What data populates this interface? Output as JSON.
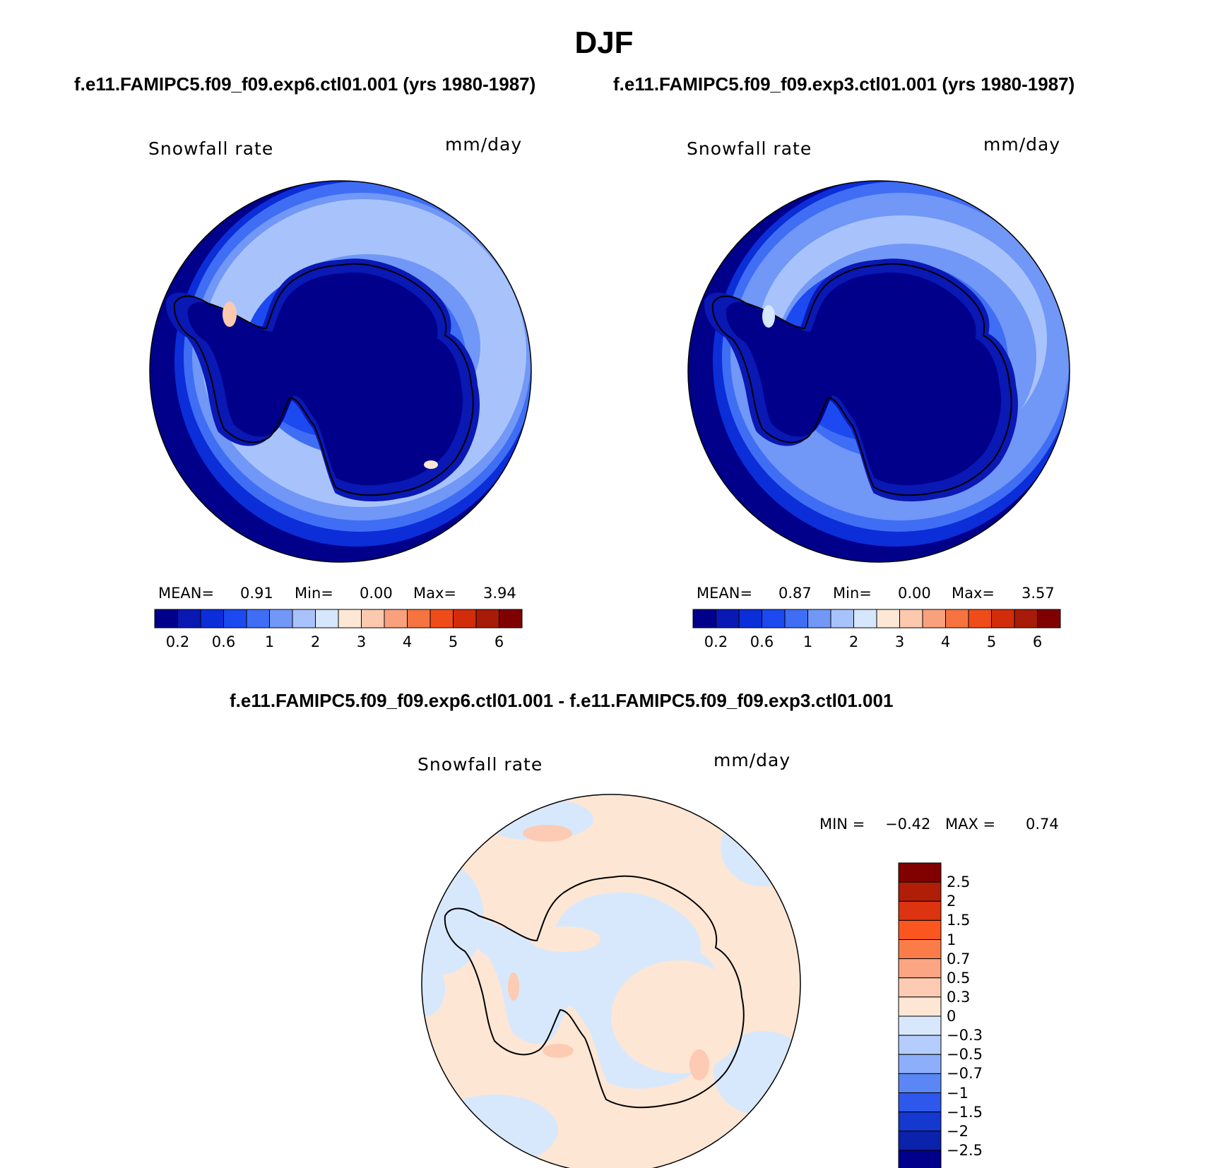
{
  "title": "DJF",
  "panels": [
    {
      "subtitle": "f.e11.FAMIPC5.f09_f09.exp6.ctl01.001 (yrs 1980-1987)",
      "variable": "Snowfall rate",
      "units": "mm/day",
      "stats": {
        "mean_label": "MEAN=",
        "mean": "0.91",
        "min_label": "Min=",
        "min": "0.00",
        "max_label": "Max=",
        "max": "3.94"
      }
    },
    {
      "subtitle": "f.e11.FAMIPC5.f09_f09.exp3.ctl01.001 (yrs 1980-1987)",
      "variable": "Snowfall rate",
      "units": "mm/day",
      "stats": {
        "mean_label": "MEAN=",
        "mean": "0.87",
        "min_label": "Min=",
        "min": "0.00",
        "max_label": "Max=",
        "max": "3.57"
      }
    }
  ],
  "difference": {
    "subtitle": "f.e11.FAMIPC5.f09_f09.exp6.ctl01.001 - f.e11.FAMIPC5.f09_f09.exp3.ctl01.001",
    "variable": "Snowfall rate",
    "units": "mm/day",
    "min_label": "MIN =",
    "min": "−0.42",
    "max_label": "MAX =",
    "max": "0.74"
  },
  "colorbar_main": {
    "colors": [
      "#00008b",
      "#0a18b4",
      "#0b2ed8",
      "#1d49f0",
      "#3f6ef5",
      "#7197f7",
      "#a8c3fb",
      "#d5e6fd",
      "#fde8d6",
      "#fcc9ae",
      "#f9a07d",
      "#f6743f",
      "#f04c1a",
      "#d22d0b",
      "#a81b08",
      "#800000"
    ],
    "tick_labels": [
      "0.2",
      "0.6",
      "1",
      "2",
      "3",
      "4",
      "5",
      "6"
    ]
  },
  "colorbar_diff": {
    "colors_top_to_bottom": [
      "#800000",
      "#b01e08",
      "#dc3310",
      "#fb5620",
      "#fb7c48",
      "#fca583",
      "#fdcbb3",
      "#fee6d4",
      "#d7e8fd",
      "#b4cdfc",
      "#8daefa",
      "#5a87f5",
      "#2e57ec",
      "#1538d0",
      "#0b22aa",
      "#00008b"
    ],
    "tick_labels": [
      "2.5",
      "2",
      "1.5",
      "1",
      "0.7",
      "0.5",
      "0.3",
      "0",
      "−0.3",
      "−0.5",
      "−0.7",
      "−1",
      "−1.5",
      "−2",
      "−2.5"
    ]
  }
}
